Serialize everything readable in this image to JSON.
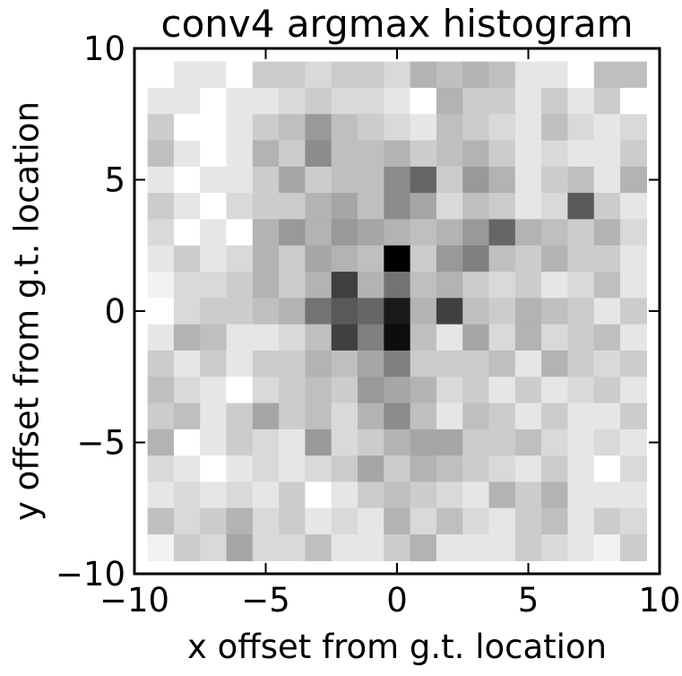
{
  "chart_data": {
    "type": "heatmap",
    "title": "conv4 argmax histogram",
    "xlabel": "x offset from g.t. location",
    "ylabel": "y offset from g.t. location",
    "xlim": [
      -10,
      10
    ],
    "ylim": [
      -10,
      10
    ],
    "xticks": [
      "−10",
      "−5",
      "0",
      "5",
      "10"
    ],
    "yticks": [
      "10",
      "5",
      "0",
      "−5",
      "−10"
    ],
    "grid": false,
    "colormap": "gray_r",
    "cell_size": 1,
    "x_centers": [
      -9,
      -8,
      -7,
      -6,
      -5,
      -4,
      -3,
      -2,
      -1,
      0,
      1,
      2,
      3,
      4,
      5,
      6,
      7,
      8,
      9
    ],
    "y_centers": [
      9,
      8,
      7,
      6,
      5,
      4,
      3,
      2,
      1,
      0,
      -1,
      -2,
      -3,
      -4,
      -5,
      -6,
      -7,
      -8,
      -9
    ],
    "values": [
      [
        0.0,
        0.1,
        0.1,
        0.0,
        0.2,
        0.2,
        0.15,
        0.2,
        0.2,
        0.15,
        0.3,
        0.25,
        0.3,
        0.25,
        0.1,
        0.1,
        0.0,
        0.25,
        0.25
      ],
      [
        0.1,
        0.1,
        0.0,
        0.1,
        0.1,
        0.15,
        0.2,
        0.15,
        0.15,
        0.1,
        0.0,
        0.3,
        0.2,
        0.2,
        0.1,
        0.2,
        0.1,
        0.2,
        0.0
      ],
      [
        0.2,
        0.0,
        0.0,
        0.1,
        0.2,
        0.25,
        0.4,
        0.25,
        0.2,
        0.15,
        0.1,
        0.25,
        0.2,
        0.15,
        0.1,
        0.25,
        0.15,
        0.1,
        0.15
      ],
      [
        0.25,
        0.1,
        0.0,
        0.1,
        0.3,
        0.2,
        0.45,
        0.25,
        0.25,
        0.3,
        0.2,
        0.25,
        0.3,
        0.2,
        0.1,
        0.15,
        0.1,
        0.1,
        0.2
      ],
      [
        0.1,
        0.0,
        0.1,
        0.1,
        0.2,
        0.35,
        0.2,
        0.25,
        0.25,
        0.45,
        0.6,
        0.2,
        0.4,
        0.3,
        0.1,
        0.2,
        0.25,
        0.1,
        0.3
      ],
      [
        0.2,
        0.1,
        0.0,
        0.15,
        0.2,
        0.2,
        0.3,
        0.35,
        0.25,
        0.45,
        0.35,
        0.15,
        0.25,
        0.2,
        0.1,
        0.15,
        0.65,
        0.2,
        0.1
      ],
      [
        0.15,
        0.0,
        0.1,
        0.0,
        0.3,
        0.4,
        0.3,
        0.4,
        0.35,
        0.3,
        0.25,
        0.3,
        0.4,
        0.6,
        0.3,
        0.25,
        0.2,
        0.3,
        0.15
      ],
      [
        0.1,
        0.2,
        0.1,
        0.15,
        0.3,
        0.2,
        0.35,
        0.3,
        0.25,
        1.0,
        0.2,
        0.4,
        0.5,
        0.25,
        0.2,
        0.3,
        0.2,
        0.2,
        0.1
      ],
      [
        0.05,
        0.15,
        0.15,
        0.2,
        0.3,
        0.2,
        0.3,
        0.75,
        0.3,
        0.55,
        0.25,
        0.3,
        0.2,
        0.15,
        0.2,
        0.1,
        0.15,
        0.25,
        0.1
      ],
      [
        0.0,
        0.15,
        0.2,
        0.2,
        0.25,
        0.3,
        0.55,
        0.65,
        0.6,
        0.9,
        0.3,
        0.75,
        0.25,
        0.2,
        0.3,
        0.25,
        0.2,
        0.1,
        0.2
      ],
      [
        0.1,
        0.3,
        0.25,
        0.1,
        0.1,
        0.15,
        0.25,
        0.75,
        0.5,
        0.95,
        0.25,
        0.1,
        0.35,
        0.15,
        0.3,
        0.15,
        0.2,
        0.25,
        0.1
      ],
      [
        0.2,
        0.1,
        0.2,
        0.1,
        0.2,
        0.2,
        0.3,
        0.25,
        0.35,
        0.5,
        0.2,
        0.2,
        0.2,
        0.25,
        0.1,
        0.3,
        0.2,
        0.15,
        0.2
      ],
      [
        0.25,
        0.15,
        0.1,
        0.0,
        0.15,
        0.2,
        0.25,
        0.2,
        0.4,
        0.35,
        0.3,
        0.15,
        0.2,
        0.1,
        0.2,
        0.1,
        0.15,
        0.2,
        0.1
      ],
      [
        0.2,
        0.25,
        0.1,
        0.2,
        0.35,
        0.2,
        0.25,
        0.15,
        0.3,
        0.45,
        0.25,
        0.1,
        0.25,
        0.2,
        0.1,
        0.2,
        0.1,
        0.1,
        0.2
      ],
      [
        0.3,
        0.0,
        0.1,
        0.2,
        0.15,
        0.1,
        0.4,
        0.15,
        0.2,
        0.3,
        0.35,
        0.35,
        0.2,
        0.2,
        0.25,
        0.15,
        0.1,
        0.15,
        0.1
      ],
      [
        0.15,
        0.1,
        0.0,
        0.1,
        0.15,
        0.1,
        0.15,
        0.2,
        0.35,
        0.2,
        0.3,
        0.25,
        0.2,
        0.15,
        0.1,
        0.2,
        0.1,
        0.0,
        0.15
      ],
      [
        0.1,
        0.15,
        0.1,
        0.15,
        0.1,
        0.2,
        0.0,
        0.1,
        0.2,
        0.25,
        0.2,
        0.15,
        0.1,
        0.3,
        0.2,
        0.3,
        0.1,
        0.1,
        0.1
      ],
      [
        0.25,
        0.15,
        0.2,
        0.3,
        0.15,
        0.2,
        0.1,
        0.15,
        0.1,
        0.3,
        0.15,
        0.25,
        0.15,
        0.1,
        0.2,
        0.25,
        0.1,
        0.2,
        0.15
      ],
      [
        0.05,
        0.2,
        0.15,
        0.35,
        0.15,
        0.15,
        0.25,
        0.1,
        0.1,
        0.2,
        0.3,
        0.1,
        0.1,
        0.1,
        0.2,
        0.15,
        0.1,
        0.05,
        0.2
      ]
    ]
  }
}
